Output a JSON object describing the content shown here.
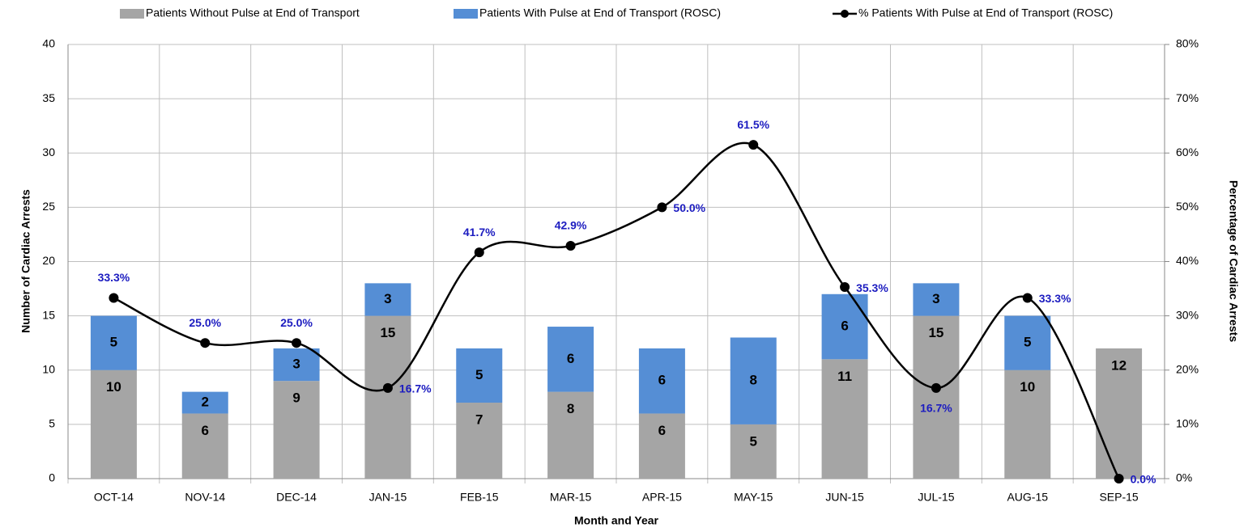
{
  "chart_data": {
    "type": "bar",
    "stacked": true,
    "x_label": "Month and Year",
    "y_label": "Number of Cardiac Arrests",
    "y2_label": "Percentage of Cardiac Arrests",
    "categories": [
      "OCT-14",
      "NOV-14",
      "DEC-14",
      "JAN-15",
      "FEB-15",
      "MAR-15",
      "APR-15",
      "MAY-15",
      "JUN-15",
      "JUL-15",
      "AUG-15",
      "SEP-15"
    ],
    "series": [
      {
        "name": "Patients Without Pulse at End of Transport",
        "color": "#a5a5a5",
        "values": [
          10,
          6,
          9,
          15,
          7,
          8,
          6,
          5,
          11,
          15,
          10,
          12
        ]
      },
      {
        "name": "Patients With Pulse at End of Transport (ROSC)",
        "color": "#558ed5",
        "values": [
          5,
          2,
          3,
          3,
          5,
          6,
          6,
          8,
          6,
          3,
          5,
          null
        ]
      },
      {
        "name": "% Patients With Pulse at End of Transport (ROSC)",
        "color": "#000000",
        "type": "line",
        "axis": "y2",
        "values": [
          33.3,
          25.0,
          25.0,
          16.7,
          41.7,
          42.9,
          50.0,
          61.5,
          35.3,
          16.7,
          33.3,
          0.0
        ],
        "value_labels": [
          "33.3%",
          "25.0%",
          "25.0%",
          "16.7%",
          "41.7%",
          "42.9%",
          "50.0%",
          "61.5%",
          "35.3%",
          "16.7%",
          "33.3%",
          "0.0%"
        ]
      }
    ],
    "ylim": [
      0,
      40
    ],
    "yticks": [
      0,
      5,
      10,
      15,
      20,
      25,
      30,
      35,
      40
    ],
    "y2lim": [
      0,
      80
    ],
    "y2ticks": [
      {
        "value": 0,
        "label": "0%"
      },
      {
        "value": 10,
        "label": "10%"
      },
      {
        "value": 20,
        "label": "20%"
      },
      {
        "value": 30,
        "label": "30%"
      },
      {
        "value": 40,
        "label": "40%"
      },
      {
        "value": 50,
        "label": "50%"
      },
      {
        "value": 60,
        "label": "60%"
      },
      {
        "value": 70,
        "label": "70%"
      },
      {
        "value": 80,
        "label": "80%"
      }
    ],
    "grid": true
  }
}
